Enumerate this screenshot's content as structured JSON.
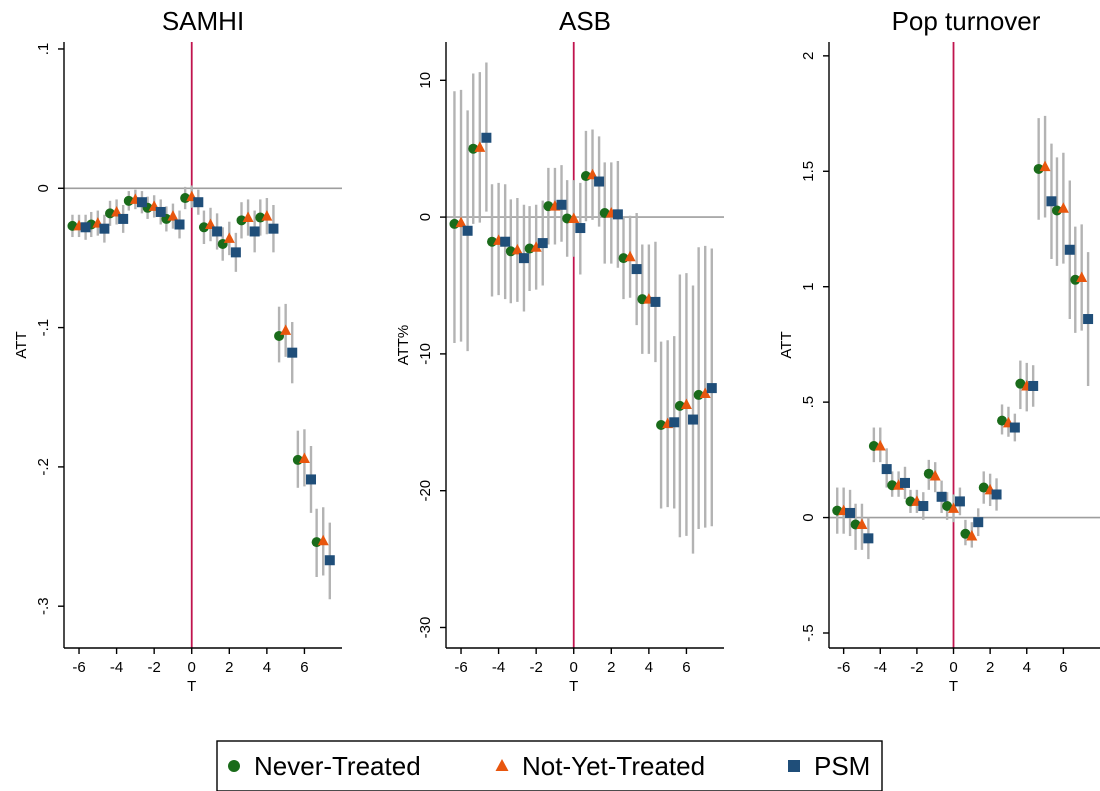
{
  "legend": {
    "items": [
      {
        "label": "Never-Treated",
        "color": "#1a6b1a",
        "marker": "circle"
      },
      {
        "label": "Not-Yet-Treated",
        "color": "#e8560e",
        "marker": "triangle"
      },
      {
        "label": "PSM",
        "color": "#1f4e79",
        "marker": "square"
      }
    ]
  },
  "colors": {
    "ci": "#b3b3b3",
    "zero_line": "#9e9e9e",
    "treatment_line": "#c0144e"
  },
  "chart_data": [
    {
      "type": "scatter",
      "title": "SAMHI",
      "xlabel": "T",
      "ylabel": "ATT",
      "xlim": [
        -6.8,
        8.0
      ],
      "ylim": [
        -0.33,
        0.105
      ],
      "xticks": [
        -6,
        -4,
        -2,
        0,
        2,
        4,
        6
      ],
      "yticks": [
        0.1,
        0,
        -0.1,
        -0.2,
        -0.3
      ],
      "ytick_labels": [
        ".1",
        "0",
        "-.1",
        "-.2",
        "-.3"
      ],
      "x": [
        -6,
        -5,
        -4,
        -3,
        -2,
        -1,
        0,
        1,
        2,
        3,
        4,
        5,
        6,
        7
      ],
      "series": [
        {
          "name": "Never-Treated",
          "values": [
            -0.027,
            -0.026,
            -0.018,
            -0.009,
            -0.014,
            -0.022,
            -0.007,
            -0.028,
            -0.04,
            -0.023,
            -0.021,
            -0.106,
            -0.195,
            -0.254
          ],
          "ci": [
            [
              -0.035,
              -0.019
            ],
            [
              -0.035,
              -0.017
            ],
            [
              -0.027,
              -0.009
            ],
            [
              -0.016,
              -0.002
            ],
            [
              -0.022,
              -0.006
            ],
            [
              -0.031,
              -0.013
            ],
            [
              -0.015,
              0.001
            ],
            [
              -0.04,
              -0.016
            ],
            [
              -0.052,
              -0.028
            ],
            [
              -0.036,
              -0.01
            ],
            [
              -0.034,
              -0.008
            ],
            [
              -0.125,
              -0.085
            ],
            [
              -0.215,
              -0.174
            ],
            [
              -0.279,
              -0.23
            ]
          ]
        },
        {
          "name": "Not-Yet-Treated",
          "values": [
            -0.027,
            -0.025,
            -0.017,
            -0.008,
            -0.013,
            -0.02,
            -0.006,
            -0.026,
            -0.036,
            -0.021,
            -0.02,
            -0.102,
            -0.194,
            -0.253
          ],
          "ci": [
            [
              -0.035,
              -0.019
            ],
            [
              -0.034,
              -0.016
            ],
            [
              -0.026,
              -0.008
            ],
            [
              -0.015,
              -0.001
            ],
            [
              -0.021,
              -0.005
            ],
            [
              -0.029,
              -0.011
            ],
            [
              -0.014,
              0.002
            ],
            [
              -0.038,
              -0.014
            ],
            [
              -0.048,
              -0.024
            ],
            [
              -0.034,
              -0.008
            ],
            [
              -0.033,
              -0.007
            ],
            [
              -0.121,
              -0.083
            ],
            [
              -0.214,
              -0.173
            ],
            [
              -0.278,
              -0.229
            ]
          ]
        },
        {
          "name": "PSM",
          "values": [
            -0.028,
            -0.029,
            -0.022,
            -0.01,
            -0.017,
            -0.026,
            -0.01,
            -0.031,
            -0.046,
            -0.031,
            -0.029,
            -0.118,
            -0.209,
            -0.267
          ],
          "ci": [
            [
              -0.037,
              -0.019
            ],
            [
              -0.039,
              -0.019
            ],
            [
              -0.032,
              -0.012
            ],
            [
              -0.018,
              -0.002
            ],
            [
              -0.026,
              -0.008
            ],
            [
              -0.036,
              -0.016
            ],
            [
              -0.019,
              -0.001
            ],
            [
              -0.044,
              -0.018
            ],
            [
              -0.06,
              -0.032
            ],
            [
              -0.046,
              -0.016
            ],
            [
              -0.046,
              -0.012
            ],
            [
              -0.14,
              -0.096
            ],
            [
              -0.233,
              -0.185
            ],
            [
              -0.295,
              -0.24
            ]
          ]
        }
      ]
    },
    {
      "type": "scatter",
      "title": "ASB",
      "xlabel": "T",
      "ylabel": "ATT%",
      "xlim": [
        -6.8,
        8.0
      ],
      "ylim": [
        -31.5,
        12.8
      ],
      "xticks": [
        -6,
        -4,
        -2,
        0,
        2,
        4,
        6
      ],
      "yticks": [
        10,
        0,
        -10,
        -20,
        -30
      ],
      "ytick_labels": [
        "10",
        "0",
        "-10",
        "-20",
        "-30"
      ],
      "x": [
        -6,
        -5,
        -4,
        -3,
        -2,
        -1,
        0,
        1,
        2,
        3,
        4,
        5,
        6,
        7
      ],
      "series": [
        {
          "name": "Never-Treated",
          "values": [
            -0.5,
            5.0,
            -1.8,
            -2.5,
            -2.3,
            0.8,
            -0.1,
            3.0,
            0.3,
            -3.0,
            -6.0,
            -15.2,
            -13.8,
            -13.0
          ],
          "ci": [
            [
              -9.2,
              9.2
            ],
            [
              -0.5,
              10.5
            ],
            [
              -5.8,
              2.4
            ],
            [
              -6.3,
              1.3
            ],
            [
              -5.4,
              0.8
            ],
            [
              -2.0,
              3.6
            ],
            [
              -2.9,
              2.7
            ],
            [
              -0.3,
              6.3
            ],
            [
              -3.4,
              4.0
            ],
            [
              -6.0,
              0.0
            ],
            [
              -10.0,
              -2.0
            ],
            [
              -21.3,
              -9.1
            ],
            [
              -23.4,
              -4.2
            ],
            [
              -22.8,
              -2.2
            ]
          ]
        },
        {
          "name": "Not-Yet-Treated",
          "values": [
            -0.4,
            5.1,
            -1.7,
            -2.4,
            -2.2,
            0.8,
            -0.1,
            3.1,
            0.3,
            -2.9,
            -6.0,
            -15.1,
            -13.7,
            -12.9
          ],
          "ci": [
            [
              -9.1,
              9.3
            ],
            [
              -0.4,
              10.6
            ],
            [
              -5.7,
              2.5
            ],
            [
              -6.2,
              1.4
            ],
            [
              -5.3,
              0.9
            ],
            [
              -2.0,
              3.6
            ],
            [
              -2.9,
              2.7
            ],
            [
              -0.2,
              6.4
            ],
            [
              -3.4,
              4.0
            ],
            [
              -5.9,
              0.1
            ],
            [
              -10.0,
              -2.0
            ],
            [
              -21.2,
              -9.0
            ],
            [
              -23.3,
              -4.1
            ],
            [
              -22.7,
              -2.1
            ]
          ]
        },
        {
          "name": "PSM",
          "values": [
            -1.0,
            5.8,
            -1.8,
            -3.0,
            -1.9,
            0.9,
            -0.8,
            2.6,
            0.2,
            -3.8,
            -6.2,
            -15.0,
            -14.8,
            -12.5
          ],
          "ci": [
            [
              -9.8,
              7.8
            ],
            [
              0.4,
              11.3
            ],
            [
              -6.0,
              2.4
            ],
            [
              -6.9,
              0.9
            ],
            [
              -5.0,
              1.2
            ],
            [
              -1.8,
              3.8
            ],
            [
              -4.2,
              2.5
            ],
            [
              -0.7,
              5.9
            ],
            [
              -3.7,
              4.1
            ],
            [
              -7.9,
              0.3
            ],
            [
              -10.6,
              -1.8
            ],
            [
              -21.3,
              -8.7
            ],
            [
              -24.6,
              -5.0
            ],
            [
              -22.6,
              -2.3
            ]
          ]
        }
      ]
    },
    {
      "type": "scatter",
      "title": "Pop turnover",
      "xlabel": "T",
      "ylabel": "ATT",
      "xlim": [
        -6.8,
        8.0
      ],
      "ylim": [
        -0.565,
        2.06
      ],
      "xticks": [
        -6,
        -4,
        -2,
        0,
        2,
        4,
        6
      ],
      "yticks": [
        2,
        1.5,
        1,
        0.5,
        0,
        -0.5
      ],
      "ytick_labels": [
        "2",
        "1.5",
        "1",
        ".5",
        "0",
        "-.5"
      ],
      "x": [
        -6,
        -5,
        -4,
        -3,
        -2,
        -1,
        0,
        1,
        2,
        3,
        4,
        5,
        6,
        7
      ],
      "series": [
        {
          "name": "Never-Treated",
          "values": [
            0.03,
            -0.03,
            0.31,
            0.14,
            0.07,
            0.19,
            0.05,
            -0.07,
            0.13,
            0.42,
            0.58,
            1.51,
            1.33,
            1.03
          ],
          "ci": [
            [
              -0.07,
              0.13
            ],
            [
              -0.14,
              0.06
            ],
            [
              0.24,
              0.39
            ],
            [
              0.09,
              0.2
            ],
            [
              0.02,
              0.12
            ],
            [
              0.12,
              0.25
            ],
            [
              -0.01,
              0.11
            ],
            [
              -0.12,
              -0.01
            ],
            [
              0.06,
              0.2
            ],
            [
              0.36,
              0.49
            ],
            [
              0.47,
              0.68
            ],
            [
              1.29,
              1.73
            ],
            [
              1.09,
              1.56
            ],
            [
              0.8,
              1.26
            ]
          ]
        },
        {
          "name": "Not-Yet-Treated",
          "values": [
            0.03,
            -0.03,
            0.31,
            0.14,
            0.07,
            0.18,
            0.04,
            -0.08,
            0.12,
            0.41,
            0.57,
            1.52,
            1.34,
            1.04
          ],
          "ci": [
            [
              -0.07,
              0.13
            ],
            [
              -0.14,
              0.06
            ],
            [
              0.24,
              0.39
            ],
            [
              0.09,
              0.2
            ],
            [
              0.02,
              0.12
            ],
            [
              0.11,
              0.24
            ],
            [
              -0.02,
              0.1
            ],
            [
              -0.13,
              -0.02
            ],
            [
              0.05,
              0.19
            ],
            [
              0.35,
              0.48
            ],
            [
              0.46,
              0.67
            ],
            [
              1.3,
              1.74
            ],
            [
              1.1,
              1.58
            ],
            [
              0.81,
              1.27
            ]
          ]
        },
        {
          "name": "PSM",
          "values": [
            0.02,
            -0.09,
            0.21,
            0.15,
            0.05,
            0.09,
            0.07,
            -0.02,
            0.1,
            0.39,
            0.57,
            1.37,
            1.16,
            0.86
          ],
          "ci": [
            [
              -0.08,
              0.12
            ],
            [
              -0.18,
              0.0
            ],
            [
              0.13,
              0.3
            ],
            [
              0.08,
              0.22
            ],
            [
              -0.01,
              0.11
            ],
            [
              0.02,
              0.16
            ],
            [
              0.01,
              0.13
            ],
            [
              -0.08,
              0.04
            ],
            [
              0.03,
              0.17
            ],
            [
              0.33,
              0.45
            ],
            [
              0.48,
              0.66
            ],
            [
              1.12,
              1.62
            ],
            [
              0.86,
              1.46
            ],
            [
              0.57,
              1.15
            ]
          ]
        }
      ]
    }
  ]
}
